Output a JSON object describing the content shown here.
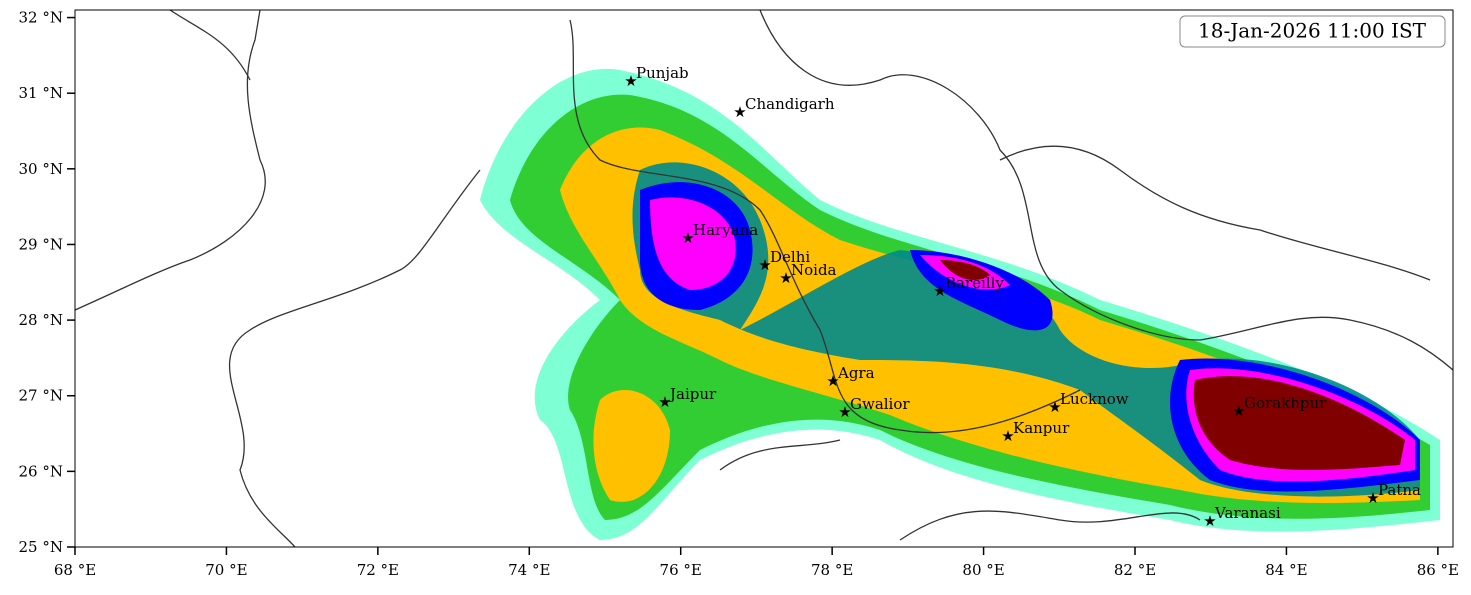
{
  "map": {
    "timestamp": "18-Jan-2026 11:00 IST",
    "xlim": [
      68,
      86.2
    ],
    "ylim": [
      25,
      32.1
    ],
    "xticks": [
      {
        "value": 68,
        "label": "68 °E"
      },
      {
        "value": 70,
        "label": "70 °E"
      },
      {
        "value": 72,
        "label": "72 °E"
      },
      {
        "value": 74,
        "label": "74 °E"
      },
      {
        "value": 76,
        "label": "76 °E"
      },
      {
        "value": 78,
        "label": "78 °E"
      },
      {
        "value": 80,
        "label": "80 °E"
      },
      {
        "value": 82,
        "label": "82 °E"
      },
      {
        "value": 84,
        "label": "84 °E"
      },
      {
        "value": 86,
        "label": "86 °E"
      }
    ],
    "yticks": [
      {
        "value": 25,
        "label": "25 °N"
      },
      {
        "value": 26,
        "label": "26 °N"
      },
      {
        "value": 27,
        "label": "27 °N"
      },
      {
        "value": 28,
        "label": "28 °N"
      },
      {
        "value": 29,
        "label": "29 °N"
      },
      {
        "value": 30,
        "label": "30 °N"
      },
      {
        "value": 31,
        "label": "31 °N"
      },
      {
        "value": 32,
        "label": "32 °N"
      }
    ],
    "cities": [
      "Punjab",
      "Chandigarh",
      "Haryana",
      "Delhi",
      "Noida",
      "Bareilly",
      "Agra",
      "Jaipur",
      "Gwalior",
      "Lucknow",
      "Kanpur",
      "Gorakhpur",
      "Patna",
      "Varanasi"
    ]
  }
}
